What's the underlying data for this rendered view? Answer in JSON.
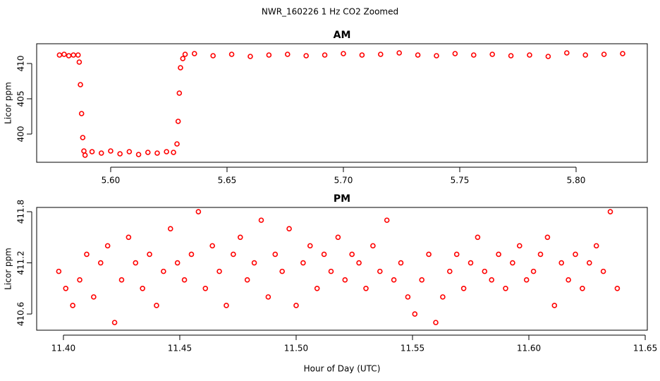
{
  "title": "NWR_160226  1 Hz CO2 Zoomed",
  "chart_data": [
    {
      "type": "scatter",
      "title": "AM",
      "ylabel": "Licor ppm",
      "color": "#ff0000",
      "xlim": [
        5.5682,
        5.8306
      ],
      "ylim": [
        396,
        412.8
      ],
      "xticks": [
        {
          "value": 5.6,
          "label": "5.60"
        },
        5.65,
        {
          "value": 5.7,
          "label": "5.70"
        },
        5.75,
        {
          "value": 5.8,
          "label": "5.80"
        }
      ],
      "yticks": [
        400,
        405,
        410
      ],
      "x": [
        5.578,
        5.58,
        5.582,
        5.584,
        5.586,
        5.5865,
        5.587,
        5.5875,
        5.588,
        5.5885,
        5.589,
        5.592,
        5.596,
        5.6,
        5.604,
        5.608,
        5.612,
        5.616,
        5.62,
        5.624,
        5.627,
        5.6285,
        5.629,
        5.6295,
        5.63,
        5.631,
        5.632,
        5.636,
        5.644,
        5.652,
        5.66,
        5.668,
        5.676,
        5.684,
        5.692,
        5.7,
        5.708,
        5.716,
        5.724,
        5.732,
        5.74,
        5.748,
        5.756,
        5.764,
        5.772,
        5.78,
        5.788,
        5.796,
        5.804,
        5.812,
        5.82
      ],
      "y": [
        411.2,
        411.3,
        411.1,
        411.2,
        411.2,
        410.2,
        407.0,
        402.9,
        399.5,
        397.6,
        397.0,
        397.5,
        397.3,
        397.6,
        397.2,
        397.5,
        397.1,
        397.4,
        397.3,
        397.5,
        397.4,
        398.6,
        401.8,
        405.8,
        409.4,
        410.7,
        411.3,
        411.4,
        411.1,
        411.3,
        411.0,
        411.2,
        411.3,
        411.1,
        411.2,
        411.4,
        411.2,
        411.3,
        411.5,
        411.2,
        411.1,
        411.4,
        411.2,
        411.3,
        411.1,
        411.2,
        411.0,
        411.5,
        411.2,
        411.3,
        411.4
      ]
    },
    {
      "type": "scatter",
      "title": "PM",
      "ylabel": "Licor ppm",
      "xlabel": "Hour of Day (UTC)",
      "color": "#ff0000",
      "xlim": [
        11.3885,
        11.6509
      ],
      "ylim": [
        410.41,
        411.85
      ],
      "xticks": [
        {
          "value": 11.4,
          "label": "11.40"
        },
        11.45,
        {
          "value": 11.5,
          "label": "11.50"
        },
        11.55,
        {
          "value": 11.6,
          "label": "11.60"
        },
        11.65
      ],
      "yticks": [
        410.6,
        411.2,
        411.8
      ],
      "x": [
        11.398,
        11.401,
        11.404,
        11.407,
        11.41,
        11.413,
        11.416,
        11.419,
        11.422,
        11.425,
        11.428,
        11.431,
        11.434,
        11.437,
        11.44,
        11.443,
        11.446,
        11.449,
        11.452,
        11.455,
        11.458,
        11.461,
        11.464,
        11.467,
        11.47,
        11.473,
        11.476,
        11.479,
        11.482,
        11.485,
        11.488,
        11.491,
        11.494,
        11.497,
        11.5,
        11.503,
        11.506,
        11.509,
        11.512,
        11.515,
        11.518,
        11.521,
        11.524,
        11.527,
        11.53,
        11.533,
        11.536,
        11.539,
        11.542,
        11.545,
        11.548,
        11.551,
        11.554,
        11.557,
        11.56,
        11.563,
        11.566,
        11.569,
        11.572,
        11.575,
        11.578,
        11.581,
        11.584,
        11.587,
        11.59,
        11.593,
        11.596,
        11.599,
        11.602,
        11.605,
        11.608,
        11.611,
        11.614,
        11.617,
        11.62,
        11.623,
        11.626,
        11.629,
        11.632,
        11.635,
        11.638
      ],
      "y": [
        411.1,
        410.9,
        410.7,
        411.0,
        411.3,
        410.8,
        411.2,
        411.4,
        410.5,
        411.0,
        411.5,
        411.2,
        410.9,
        411.3,
        410.7,
        411.1,
        411.6,
        411.2,
        411.0,
        411.3,
        411.8,
        410.9,
        411.4,
        411.1,
        410.7,
        411.3,
        411.5,
        411.0,
        411.2,
        411.7,
        410.8,
        411.3,
        411.1,
        411.6,
        410.7,
        411.2,
        411.4,
        410.9,
        411.3,
        411.1,
        411.5,
        411.0,
        411.3,
        411.2,
        410.9,
        411.4,
        411.1,
        411.7,
        411.0,
        411.2,
        410.8,
        410.6,
        411.0,
        411.3,
        410.5,
        410.8,
        411.1,
        411.3,
        410.9,
        411.2,
        411.5,
        411.1,
        411.0,
        411.3,
        410.9,
        411.2,
        411.4,
        411.0,
        411.1,
        411.3,
        411.5,
        410.7,
        411.2,
        411.0,
        411.3,
        410.9,
        411.2,
        411.4,
        411.1,
        411.8,
        410.9
      ]
    }
  ]
}
